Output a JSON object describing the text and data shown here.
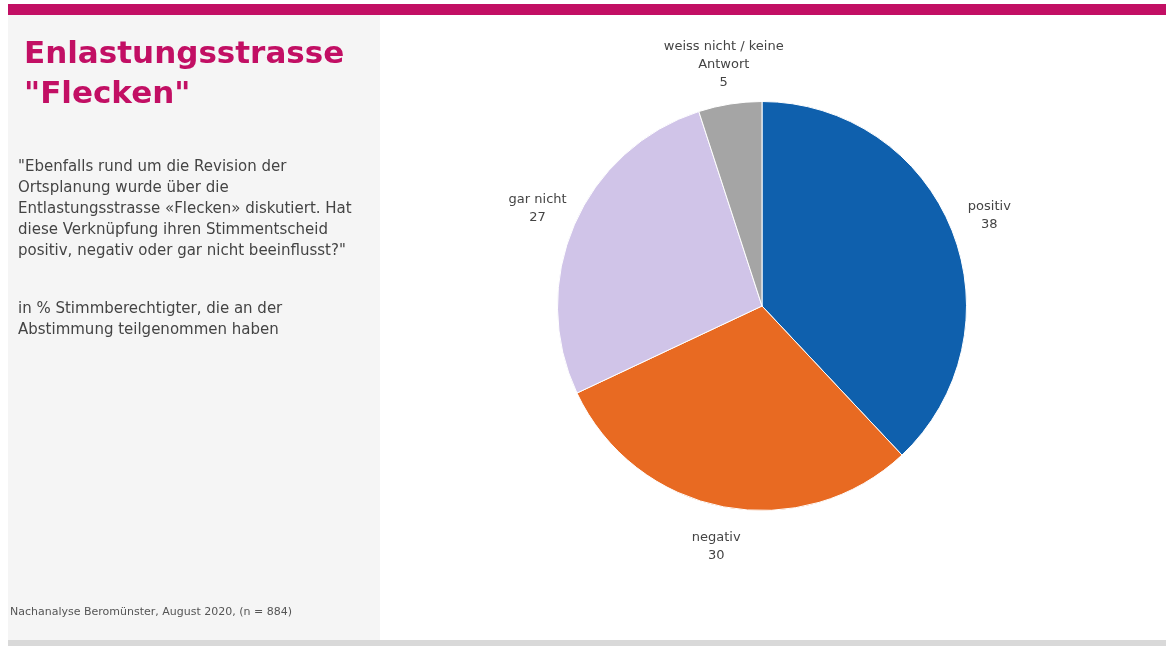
{
  "chart_data": {
    "type": "pie",
    "title": "Enlastungsstrasse \"Flecken\"",
    "subtitle": "\"Ebenfalls rund um die Revision der Ortsplanung wurde über die Entlastungsstrasse «Flecken» diskutiert. Hat diese Verknüpfung ihren Stimmentscheid positiv, negativ oder gar nicht beeinflusst?\"",
    "annotations": [
      "in % Stimmberechtigter, die an der Abstimmung teilgenommen haben",
      "Nachanalyse Beromünster, August 2020, (n = 884)"
    ],
    "categories": [
      "positiv",
      "negativ",
      "gar nicht",
      "weiss nicht / keine Antwort"
    ],
    "values": [
      38,
      30,
      27,
      5
    ],
    "colors": [
      "#0f60ad",
      "#e86a22",
      "#d0c4e8",
      "#a5a5a5"
    ],
    "data_labels": true,
    "legend": false
  }
}
